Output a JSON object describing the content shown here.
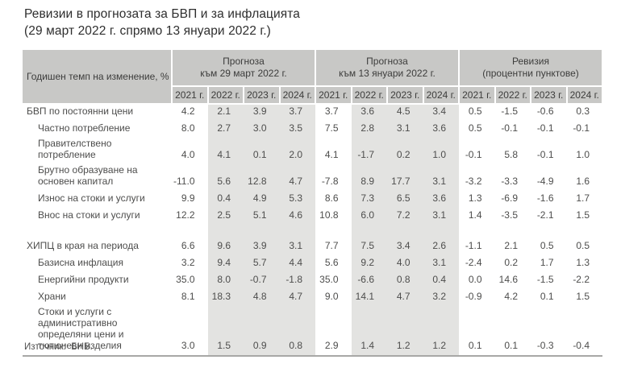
{
  "title_line1": "Ревизии в прогнозата за БВП и за инфлацията",
  "title_line2": "(29 март 2022 г. спрямо 13 януари 2022 г.)",
  "colors": {
    "header_bg": "#c8c8c6",
    "forecast_band_bg": "#e3e3e1",
    "bottom_border": "#a8a8a6",
    "text": "#4d4d4c"
  },
  "chart_data": {
    "type": "table",
    "title": "Ревизии в прогнозата за БВП и за инфлацията (29 март 2022 г. спрямо 13 януари 2022 г.)",
    "corner_header": "Годишен темп на изменение, %",
    "column_groups": [
      {
        "line1": "Прогноза",
        "line2": "към 29 март 2022 г."
      },
      {
        "line1": "Прогноза",
        "line2": "към 13 януари 2022 г."
      },
      {
        "line1": "Ревизия",
        "line2": "(процентни пунктове)"
      }
    ],
    "year_columns": [
      "2021 г.",
      "2022 г.",
      "2023 г.",
      "2024 г."
    ],
    "rows": [
      {
        "label": "БВП по постоянни цени",
        "indent": false,
        "values": [
          "4.2",
          "2.1",
          "3.9",
          "3.7",
          "3.7",
          "3.6",
          "4.5",
          "3.4",
          "0.5",
          "-1.5",
          "-0.6",
          "0.3"
        ]
      },
      {
        "label": "Частно потребление",
        "indent": true,
        "values": [
          "8.0",
          "2.7",
          "3.0",
          "3.5",
          "7.5",
          "2.8",
          "3.1",
          "3.6",
          "0.5",
          "-0.1",
          "-0.1",
          "-0.1"
        ]
      },
      {
        "label": "Правителствено потребление",
        "indent": true,
        "values": [
          "4.0",
          "4.1",
          "0.1",
          "2.0",
          "4.1",
          "-1.7",
          "0.2",
          "1.0",
          "-0.1",
          "5.8",
          "-0.1",
          "1.0"
        ]
      },
      {
        "label": "Брутно образуване на основен капитал",
        "indent": true,
        "values": [
          "-11.0",
          "5.6",
          "12.8",
          "4.7",
          "-7.8",
          "8.9",
          "17.7",
          "3.1",
          "-3.2",
          "-3.3",
          "-4.9",
          "1.6"
        ]
      },
      {
        "label": "Износ на стоки и услуги",
        "indent": true,
        "values": [
          "9.9",
          "0.4",
          "4.9",
          "5.3",
          "8.6",
          "7.3",
          "6.5",
          "3.6",
          "1.3",
          "-6.9",
          "-1.6",
          "1.7"
        ]
      },
      {
        "label": "Внос на стоки и услуги",
        "indent": true,
        "values": [
          "12.2",
          "2.5",
          "5.1",
          "4.6",
          "10.8",
          "6.0",
          "7.2",
          "3.1",
          "1.4",
          "-3.5",
          "-2.1",
          "1.5"
        ]
      },
      {
        "spacer": true
      },
      {
        "label": "ХИПЦ в края на периода",
        "indent": false,
        "values": [
          "6.6",
          "9.6",
          "3.9",
          "3.1",
          "7.7",
          "7.5",
          "3.4",
          "2.6",
          "-1.1",
          "2.1",
          "0.5",
          "0.5"
        ]
      },
      {
        "label": "Базисна инфлация",
        "indent": true,
        "values": [
          "3.2",
          "9.4",
          "5.7",
          "4.4",
          "5.6",
          "9.2",
          "4.0",
          "3.1",
          "-2.4",
          "0.2",
          "1.7",
          "1.3"
        ]
      },
      {
        "label": "Енергийни продукти",
        "indent": true,
        "values": [
          "35.0",
          "8.0",
          "-0.7",
          "-1.8",
          "35.0",
          "-6.6",
          "0.8",
          "0.4",
          "0.0",
          "14.6",
          "-1.5",
          "-2.2"
        ]
      },
      {
        "label": "Храни",
        "indent": true,
        "values": [
          "8.1",
          "18.3",
          "4.8",
          "4.7",
          "9.0",
          "14.1",
          "4.7",
          "3.2",
          "-0.9",
          "4.2",
          "0.1",
          "1.5"
        ]
      },
      {
        "label": "Стоки и услуги с административно определяни цени и тютюневи изделия",
        "indent": true,
        "values": [
          "3.0",
          "1.5",
          "0.9",
          "0.8",
          "2.9",
          "1.4",
          "1.2",
          "1.2",
          "0.1",
          "0.1",
          "-0.3",
          "-0.4"
        ]
      }
    ],
    "source": "Източник:  БНБ."
  }
}
